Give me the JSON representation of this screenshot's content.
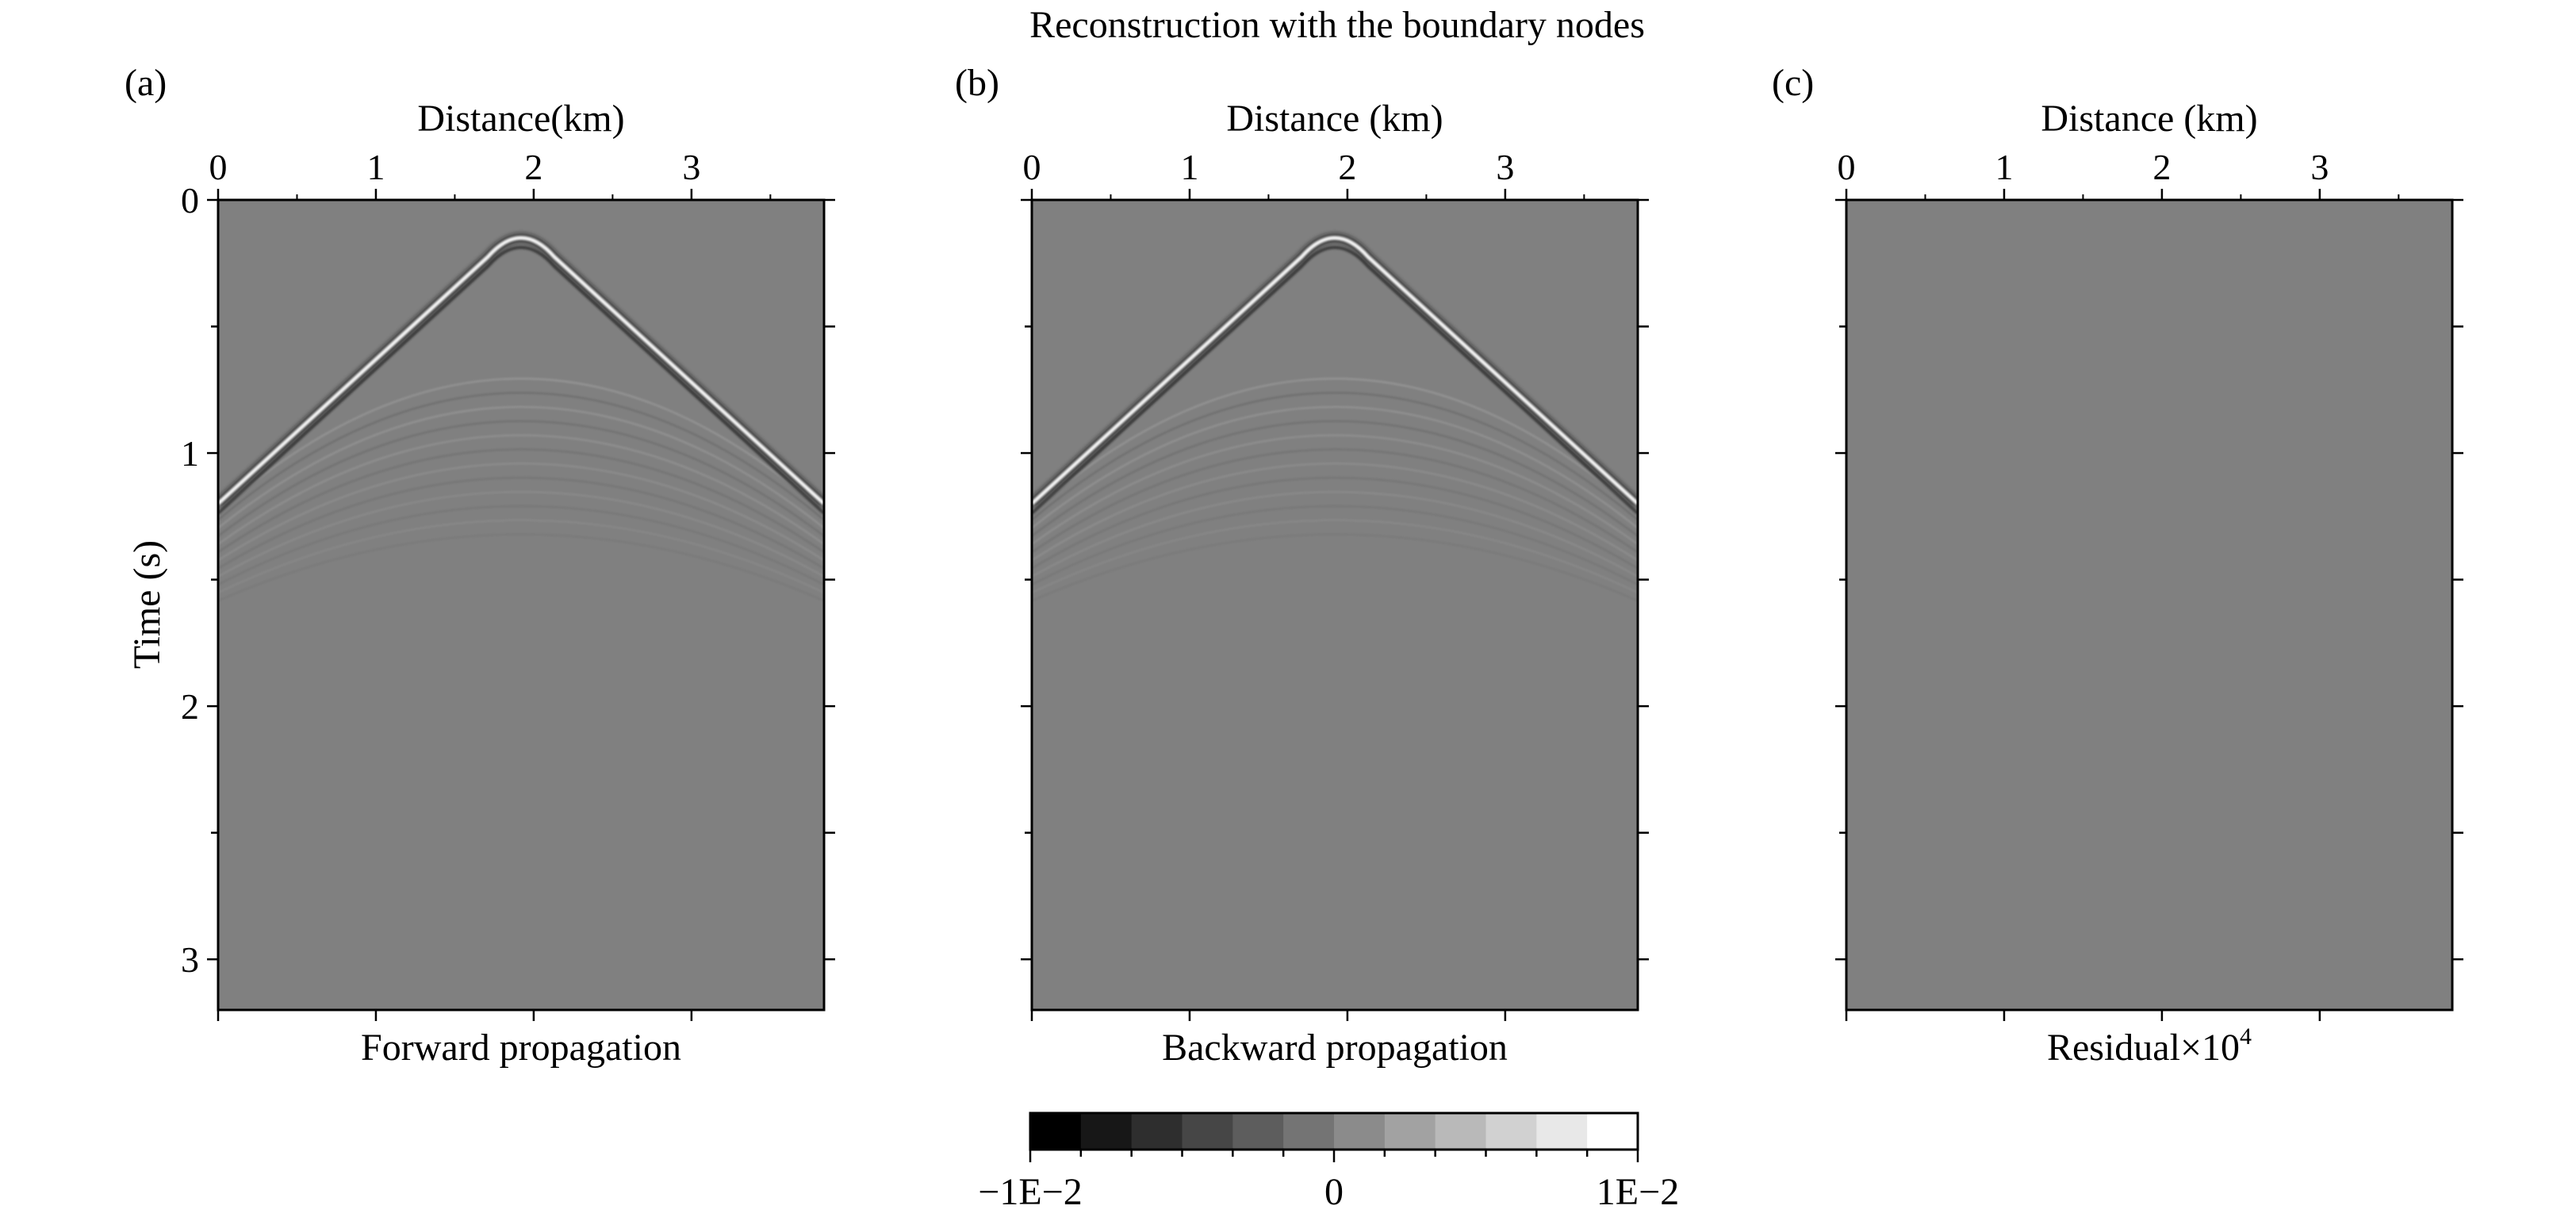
{
  "figure": {
    "title": "Reconstruction with the boundary nodes"
  },
  "chart_data": [
    {
      "type": "heatmap",
      "panel_label": "(a)",
      "xlabel": "Distance(km)",
      "ylabel": "Time (s)",
      "caption": "Forward propagation",
      "xlim": [
        0,
        3.84
      ],
      "ylim": [
        0,
        3.2
      ],
      "x_ticks": [
        "0",
        "1",
        "2",
        "3"
      ],
      "y_ticks": [
        "0",
        "1",
        "2",
        "3"
      ],
      "pattern": "wavefield",
      "apex": {
        "distance_km": 1.92,
        "time_s": 0.1
      },
      "edge_time_s": 1.2
    },
    {
      "type": "heatmap",
      "panel_label": "(b)",
      "xlabel": "Distance (km)",
      "ylabel": "",
      "caption": "Backward propagation",
      "xlim": [
        0,
        3.84
      ],
      "ylim": [
        0,
        3.2
      ],
      "x_ticks": [
        "0",
        "1",
        "2",
        "3"
      ],
      "y_ticks": [],
      "pattern": "wavefield",
      "apex": {
        "distance_km": 1.92,
        "time_s": 0.1
      },
      "edge_time_s": 1.2
    },
    {
      "type": "heatmap",
      "panel_label": "(c)",
      "xlabel": "Distance (km)",
      "ylabel": "",
      "caption_main": "Residual×10",
      "caption_sup": "4",
      "xlim": [
        0,
        3.84
      ],
      "ylim": [
        0,
        3.2
      ],
      "x_ticks": [
        "0",
        "1",
        "2",
        "3"
      ],
      "y_ticks": [],
      "pattern": "uniform"
    }
  ],
  "colorbar": {
    "min_label": "−1E−2",
    "mid_label": "0",
    "max_label": "1E−2",
    "range": [
      -0.01,
      0.01
    ],
    "steps": 12,
    "color_low": "#000000",
    "color_high": "#ffffff"
  },
  "colors": {
    "background_gray": "#808080",
    "axis": "#000000"
  }
}
